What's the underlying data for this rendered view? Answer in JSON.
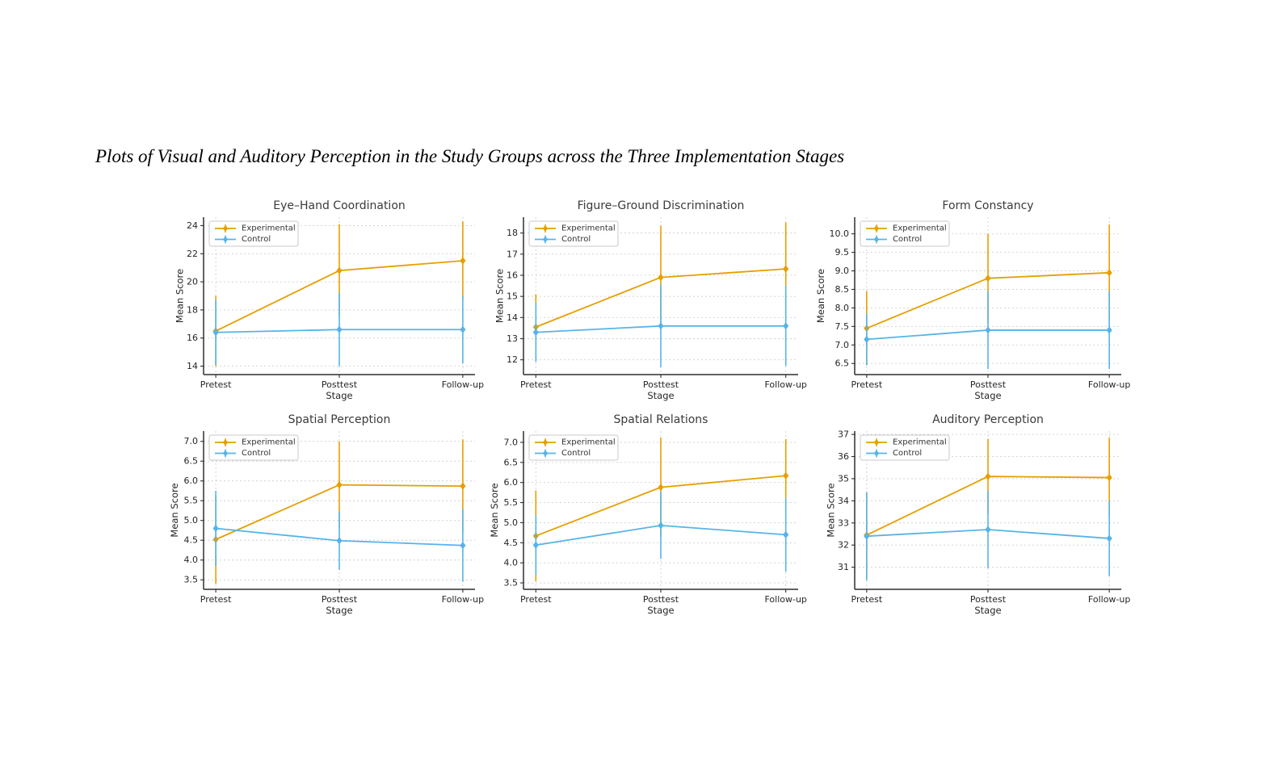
{
  "figure": {
    "title": "Plots of Visual and Auditory Perception in the Study Groups across the Three Implementation Stages"
  },
  "palette": {
    "experimental": "#E69F00",
    "control": "#56B4E9",
    "grid": "#cfcfcf",
    "spine": "#2f2f2f",
    "tick_text": "#262626",
    "title_text": "#3a3a3a",
    "legend_border": "#c9c9c9",
    "background": "#ffffff"
  },
  "legend": {
    "experimental_label": "Experimental",
    "control_label": "Control",
    "position": "upper left"
  },
  "chart_data": [
    {
      "type": "line",
      "title": "Eye–Hand Coordination",
      "xlabel": "Stage",
      "ylabel": "Mean Score",
      "categories": [
        "Pretest",
        "Posttest",
        "Follow-up"
      ],
      "ylim": [
        13.4,
        24.6
      ],
      "ytick_values": [
        14,
        16,
        18,
        20,
        22,
        24
      ],
      "ytick_labels": [
        "14",
        "16",
        "18",
        "20",
        "22",
        "24"
      ],
      "grid": true,
      "series": [
        {
          "name": "Experimental",
          "color": "#E69F00",
          "values": [
            16.5,
            20.8,
            21.5
          ],
          "errors": [
            2.5,
            3.3,
            2.8
          ]
        },
        {
          "name": "Control",
          "color": "#56B4E9",
          "values": [
            16.4,
            16.6,
            16.6
          ],
          "errors": [
            2.3,
            2.6,
            2.4
          ]
        }
      ]
    },
    {
      "type": "line",
      "title": "Figure–Ground Discrimination",
      "xlabel": "Stage",
      "ylabel": "Mean Score",
      "categories": [
        "Pretest",
        "Posttest",
        "Follow-up"
      ],
      "ylim": [
        11.3,
        18.75
      ],
      "ytick_values": [
        12,
        13,
        14,
        15,
        16,
        17,
        18
      ],
      "ytick_labels": [
        "12",
        "13",
        "14",
        "15",
        "16",
        "17",
        "18"
      ],
      "grid": true,
      "series": [
        {
          "name": "Experimental",
          "color": "#E69F00",
          "values": [
            13.55,
            15.9,
            16.3
          ],
          "errors": [
            1.55,
            2.45,
            2.2
          ]
        },
        {
          "name": "Control",
          "color": "#56B4E9",
          "values": [
            13.3,
            13.6,
            13.6
          ],
          "errors": [
            1.4,
            1.95,
            1.9
          ]
        }
      ]
    },
    {
      "type": "line",
      "title": "Form Constancy",
      "xlabel": "Stage",
      "ylabel": "Mean Score",
      "categories": [
        "Pretest",
        "Posttest",
        "Follow-up"
      ],
      "ylim": [
        6.2,
        10.45
      ],
      "ytick_values": [
        6.5,
        7.0,
        7.5,
        8.0,
        8.5,
        9.0,
        9.5,
        10.0
      ],
      "ytick_labels": [
        "6.5",
        "7.0",
        "7.5",
        "8.0",
        "8.5",
        "9.0",
        "9.5",
        "10.0"
      ],
      "grid": true,
      "series": [
        {
          "name": "Experimental",
          "color": "#E69F00",
          "values": [
            7.45,
            8.8,
            8.95
          ],
          "errors": [
            1.0,
            1.2,
            1.3
          ]
        },
        {
          "name": "Control",
          "color": "#56B4E9",
          "values": [
            7.15,
            7.4,
            7.4
          ],
          "errors": [
            0.7,
            1.05,
            1.05
          ]
        }
      ]
    },
    {
      "type": "line",
      "title": "Spatial Perception",
      "xlabel": "Stage",
      "ylabel": "Mean Score",
      "categories": [
        "Pretest",
        "Posttest",
        "Follow-up"
      ],
      "ylim": [
        3.26,
        7.26
      ],
      "ytick_values": [
        3.5,
        4.0,
        4.5,
        5.0,
        5.5,
        6.0,
        6.5,
        7.0
      ],
      "ytick_labels": [
        "3.5",
        "4.0",
        "4.5",
        "5.0",
        "5.5",
        "6.0",
        "6.5",
        "7.0"
      ],
      "grid": true,
      "series": [
        {
          "name": "Experimental",
          "color": "#E69F00",
          "values": [
            4.52,
            5.9,
            5.87
          ],
          "errors": [
            1.12,
            1.1,
            1.18
          ]
        },
        {
          "name": "Control",
          "color": "#56B4E9",
          "values": [
            4.8,
            4.49,
            4.37
          ],
          "errors": [
            0.95,
            0.74,
            0.92
          ]
        }
      ]
    },
    {
      "type": "line",
      "title": "Spatial Relations",
      "xlabel": "Stage",
      "ylabel": "Mean Score",
      "categories": [
        "Pretest",
        "Posttest",
        "Follow-up"
      ],
      "ylim": [
        3.34,
        7.28
      ],
      "ytick_values": [
        3.5,
        4.0,
        4.5,
        5.0,
        5.5,
        6.0,
        6.5,
        7.0
      ],
      "ytick_labels": [
        "3.5",
        "4.0",
        "4.5",
        "5.0",
        "5.5",
        "6.0",
        "6.5",
        "7.0"
      ],
      "grid": true,
      "series": [
        {
          "name": "Experimental",
          "color": "#E69F00",
          "values": [
            4.67,
            5.88,
            6.17
          ],
          "errors": [
            1.13,
            1.24,
            0.91
          ]
        },
        {
          "name": "Control",
          "color": "#56B4E9",
          "values": [
            4.44,
            4.93,
            4.7
          ],
          "errors": [
            0.74,
            0.83,
            0.92
          ]
        }
      ]
    },
    {
      "type": "line",
      "title": "Auditory Perception",
      "xlabel": "Stage",
      "ylabel": "Mean Score",
      "categories": [
        "Pretest",
        "Posttest",
        "Follow-up"
      ],
      "ylim": [
        30.0,
        37.15
      ],
      "ytick_values": [
        31,
        32,
        33,
        34,
        35,
        36,
        37
      ],
      "ytick_labels": [
        "31",
        "32",
        "33",
        "34",
        "35",
        "36",
        "37"
      ],
      "grid": true,
      "series": [
        {
          "name": "Experimental",
          "color": "#E69F00",
          "values": [
            32.45,
            35.1,
            35.05
          ],
          "errors": [
            1.9,
            1.7,
            1.8
          ]
        },
        {
          "name": "Control",
          "color": "#56B4E9",
          "values": [
            32.4,
            32.7,
            32.3
          ],
          "errors": [
            2.0,
            1.75,
            1.7
          ]
        }
      ]
    }
  ]
}
